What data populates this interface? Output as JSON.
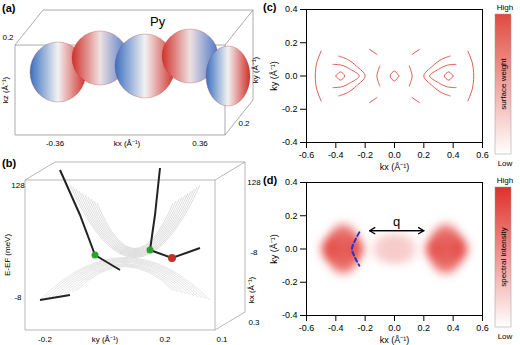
{
  "panel_a": {
    "label": "(a)",
    "annotation": "Py",
    "kx_label": "kx (Å⁻¹)",
    "kx_ticks": [
      "-0.36",
      "0.36"
    ],
    "ky_label": "ky (Å⁻¹)",
    "ky_ticks": [
      "0.2"
    ],
    "kz_label": "kz (Å⁻¹)",
    "kz_ticks": [
      "0.2"
    ]
  },
  "panel_b": {
    "label": "(b)",
    "energy_label": "E-EF (meV)",
    "energy_ticks": [
      "128",
      "-8"
    ],
    "energy_ticks_right": [
      "128",
      "-8"
    ],
    "ky_label": "ky (Å⁻¹)",
    "ky_ticks": [
      "-0.2",
      "0.2"
    ],
    "kx_label": "kx (Å⁻¹)",
    "kx_ticks": [
      "0.1",
      "0.3"
    ]
  },
  "chart_data": [
    {
      "type": "line",
      "title": "(c)",
      "x_label": "kx (Å⁻¹)",
      "y_label": "ky (Å⁻¹)",
      "xlim": [
        -0.6,
        0.6
      ],
      "ylim": [
        -0.4,
        0.4
      ],
      "xticks": [
        -0.6,
        -0.4,
        -0.2,
        {
          "value": 0,
          "label": "0.0"
        },
        0.2,
        0.4,
        0.6
      ],
      "yticks": [
        -0.4,
        -0.2,
        {
          "value": 0,
          "label": "0.0"
        },
        0.2,
        0.4
      ],
      "color": "#e04a3f",
      "curves": [
        {
          "x": [
            -0.38,
            -0.32,
            -0.26,
            -0.2,
            -0.26,
            -0.32,
            -0.38
          ],
          "y": [
            0.12,
            0.1,
            0.06,
            0,
            -0.06,
            -0.1,
            -0.12
          ]
        },
        {
          "x": [
            -0.42,
            -0.36,
            -0.3,
            -0.24,
            -0.3,
            -0.36,
            -0.42
          ],
          "y": [
            0.07,
            0.065,
            0.04,
            0,
            -0.04,
            -0.065,
            -0.07
          ]
        },
        {
          "x": [
            -0.5,
            -0.53,
            -0.54,
            -0.53,
            -0.5
          ],
          "y": [
            0.15,
            0.08,
            0,
            -0.08,
            -0.15
          ]
        },
        {
          "x": [
            -0.4,
            -0.37,
            -0.34,
            -0.37,
            -0.4
          ],
          "y": [
            0,
            0.025,
            0,
            -0.025,
            0
          ]
        },
        {
          "x": [
            0.38,
            0.32,
            0.26,
            0.2,
            0.26,
            0.32,
            0.38
          ],
          "y": [
            0.12,
            0.1,
            0.06,
            0,
            -0.06,
            -0.1,
            -0.12
          ]
        },
        {
          "x": [
            0.42,
            0.36,
            0.3,
            0.24,
            0.3,
            0.36,
            0.42
          ],
          "y": [
            0.07,
            0.065,
            0.04,
            0,
            -0.04,
            -0.065,
            -0.07
          ]
        },
        {
          "x": [
            0.5,
            0.53,
            0.54,
            0.53,
            0.5
          ],
          "y": [
            0.15,
            0.08,
            0,
            -0.08,
            -0.15
          ]
        },
        {
          "x": [
            0.4,
            0.37,
            0.34,
            0.37,
            0.4
          ],
          "y": [
            0,
            0.025,
            0,
            -0.025,
            0
          ]
        },
        {
          "x": [
            0.03,
            0,
            -0.03,
            0,
            0.03
          ],
          "y": [
            0,
            0.03,
            0,
            -0.03,
            0
          ]
        },
        {
          "x": [
            -0.1,
            -0.12,
            -0.1
          ],
          "y": [
            0.06,
            0,
            -0.06
          ]
        },
        {
          "x": [
            0.1,
            0.12,
            0.1
          ],
          "y": [
            0.06,
            0,
            -0.06
          ]
        },
        {
          "x": [
            -0.17,
            -0.12
          ],
          "y": [
            0.16,
            0.13
          ]
        },
        {
          "x": [
            0.12,
            0.17
          ],
          "y": [
            0.13,
            0.16
          ]
        },
        {
          "x": [
            -0.17,
            -0.12
          ],
          "y": [
            -0.16,
            -0.13
          ]
        },
        {
          "x": [
            0.12,
            0.17
          ],
          "y": [
            -0.13,
            -0.16
          ]
        }
      ],
      "colorbar": {
        "label": "surface weight",
        "high": "High",
        "low": "Low"
      }
    },
    {
      "type": "heatmap",
      "title": "(d)",
      "x_label": "kx (Å⁻¹)",
      "y_label": "ky (Å⁻¹)",
      "xlim": [
        -0.6,
        0.6
      ],
      "ylim": [
        -0.4,
        0.4
      ],
      "xticks": [
        -0.6,
        -0.4,
        -0.2,
        {
          "value": 0,
          "label": "0.0"
        },
        0.2,
        0.4,
        0.6
      ],
      "yticks": [
        -0.4,
        -0.2,
        {
          "value": 0,
          "label": "0.0"
        },
        0.2,
        0.4
      ],
      "color": "#e0302a",
      "intensity_range": [
        0,
        1
      ],
      "spots": {
        "x": [
          -0.36,
          -0.3,
          -0.41,
          -0.35,
          -0.35,
          0.36,
          0.3,
          0.41,
          0.35,
          0.35,
          0,
          -0.06,
          0.06
        ],
        "y": [
          0,
          0,
          0,
          0.07,
          -0.07,
          0,
          0,
          0,
          0.07,
          -0.07,
          0,
          0,
          0
        ],
        "intensity": [
          1,
          0.9,
          0.9,
          0.75,
          0.75,
          1,
          0.9,
          0.9,
          0.75,
          0.75,
          0.3,
          0.25,
          0.25
        ]
      },
      "dashed_curve": {
        "x": [
          -0.24,
          -0.27,
          -0.29,
          -0.27,
          -0.24
        ],
        "y": [
          0.1,
          0.05,
          0,
          -0.05,
          -0.1
        ],
        "color": "#3030c0",
        "line_style": "dashed"
      },
      "arrow": {
        "x1": -0.17,
        "x2": 0.2,
        "y": 0.11,
        "label": "q"
      },
      "colorbar": {
        "label": "spectral intensity",
        "high": "High",
        "low": "Low"
      }
    }
  ]
}
